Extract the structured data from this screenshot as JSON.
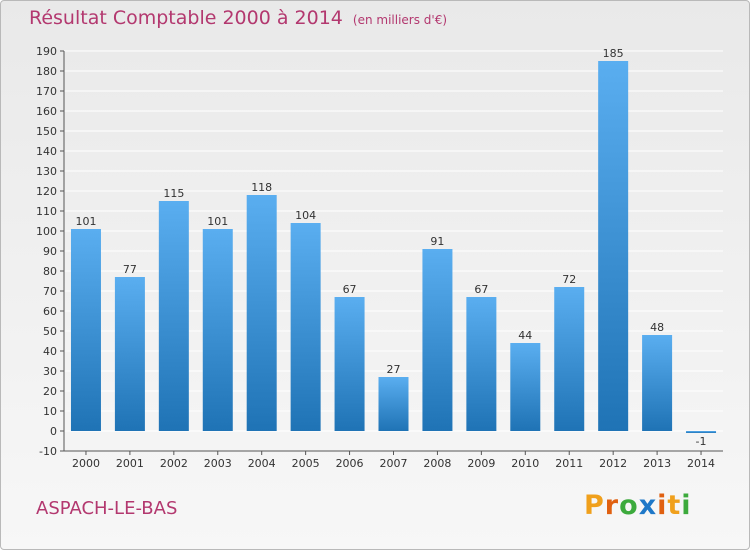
{
  "header": {
    "title": "Résultat Comptable 2000 à 2014",
    "unit": "(en milliers d'€)"
  },
  "footer": {
    "commune": "ASPACH-LE-BAS",
    "logo_text": "Proxiti",
    "logo_colors": [
      "#f0a01c",
      "#e06010",
      "#3caa3c",
      "#1e78c8",
      "#e06010",
      "#f0a01c",
      "#3caa3c"
    ]
  },
  "colors": {
    "title": "#b3386f",
    "bar_light": "#5aaef0",
    "bar_dark": "#1f73b5",
    "grid": "#ffffff"
  },
  "chart_data": {
    "type": "bar",
    "title": "Résultat Comptable 2000 à 2014",
    "subtitle": "(en milliers d'€)",
    "xlabel": "",
    "ylabel": "",
    "categories": [
      "2000",
      "2001",
      "2002",
      "2003",
      "2004",
      "2005",
      "2006",
      "2007",
      "2008",
      "2009",
      "2010",
      "2011",
      "2012",
      "2013",
      "2014"
    ],
    "values": [
      101,
      77,
      115,
      101,
      118,
      104,
      67,
      27,
      91,
      67,
      44,
      72,
      185,
      48,
      -1
    ],
    "ylim": [
      -10,
      190
    ],
    "ytick_step": 10,
    "grid": true
  }
}
